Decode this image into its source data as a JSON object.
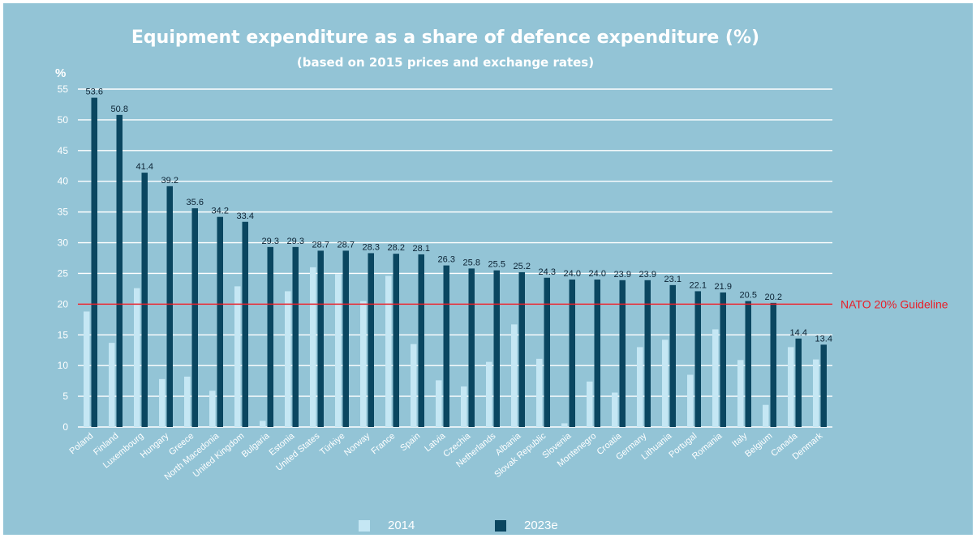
{
  "chart_data": {
    "type": "bar",
    "title": "Equipment expenditure as a share of defence expenditure (%)",
    "subtitle": "(based on 2015 prices and exchange rates)",
    "ylabel": "%",
    "ylim": [
      0,
      55
    ],
    "yticks": [
      0,
      5,
      10,
      15,
      20,
      25,
      30,
      35,
      40,
      45,
      50,
      55
    ],
    "grid": true,
    "legend_position": "bottom",
    "categories": [
      "Poland",
      "Finland",
      "Luxembourg",
      "Hungary",
      "Greece",
      "North Macedonia",
      "United Kingdom",
      "Bulgaria",
      "Estonia",
      "United States",
      "Türkiye",
      "Norway",
      "France",
      "Spain",
      "Latvia",
      "Czechia",
      "Netherlands",
      "Albania",
      "Slovak Republic",
      "Slovenia",
      "Montenegro",
      "Croatia",
      "Germany",
      "Lithuania",
      "Portugal",
      "Romania",
      "Italy",
      "Belgium",
      "Canada",
      "Denmark"
    ],
    "series": [
      {
        "name": "2014",
        "color": "#c5e7f4",
        "values": [
          18.8,
          13.7,
          22.6,
          7.8,
          8.2,
          5.9,
          22.9,
          1.0,
          22.1,
          26.0,
          24.9,
          20.5,
          24.6,
          13.5,
          7.6,
          6.6,
          10.6,
          16.7,
          11.1,
          0.6,
          7.4,
          5.6,
          13.0,
          14.2,
          8.5,
          15.9,
          10.9,
          3.6,
          13.0,
          11.0
        ]
      },
      {
        "name": "2023e",
        "color": "#0a4660",
        "values": [
          53.6,
          50.8,
          41.4,
          39.2,
          35.6,
          34.2,
          33.4,
          29.3,
          29.3,
          28.7,
          28.7,
          28.3,
          28.2,
          28.1,
          26.3,
          25.8,
          25.5,
          25.2,
          24.3,
          24.0,
          24.0,
          23.9,
          23.9,
          23.1,
          22.1,
          21.9,
          20.5,
          20.2,
          14.4,
          13.4
        ]
      }
    ],
    "data_labels": [
      "53.6",
      "50.8",
      "41.4",
      "39.2",
      "35.6",
      "34.2",
      "33.4",
      "29.3",
      "29.3",
      "28.7",
      "28.7",
      "28.3",
      "28.2",
      "28.1",
      "26.3",
      "25.8",
      "25.5",
      "25.2",
      "24.3",
      "24.0",
      "24.0",
      "23.9",
      "23.9",
      "23.1",
      "22.1",
      "21.9",
      "20.5",
      "20.2",
      "14.4",
      "13.4"
    ],
    "reference_line": {
      "value": 20,
      "label": "NATO 20% Guideline",
      "color": "#e8202a"
    }
  }
}
